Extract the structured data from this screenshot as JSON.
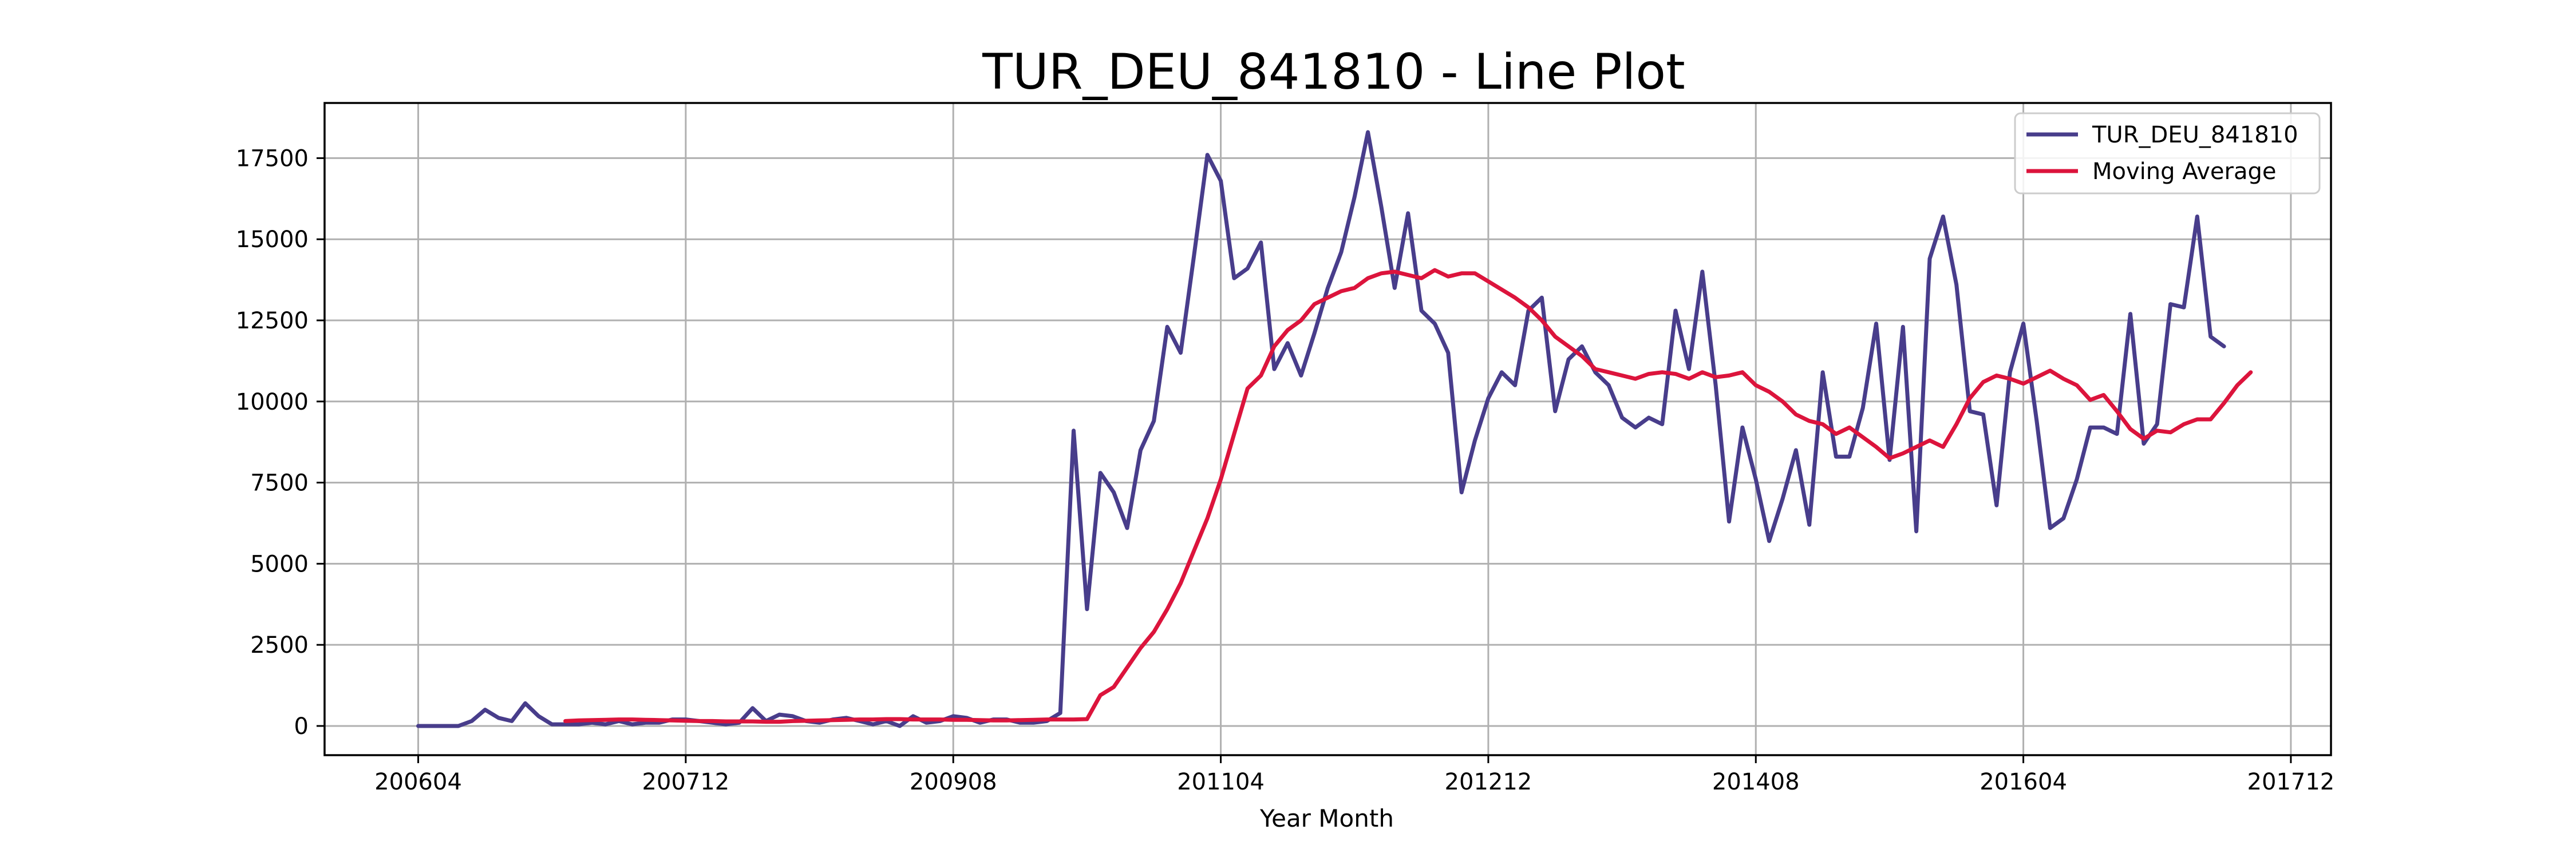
{
  "chart_data": {
    "type": "line",
    "title": "TUR_DEU_841810 - Line Plot",
    "xlabel": "Year Month",
    "ylabel": "",
    "x_tick_labels": [
      "200604",
      "200712",
      "200908",
      "201104",
      "201212",
      "201408",
      "201604",
      "201712"
    ],
    "x_tick_positions": [
      0,
      20,
      40,
      60,
      80,
      100,
      120,
      140
    ],
    "xlim": [
      -7,
      143
    ],
    "y_ticks": [
      0,
      2500,
      5000,
      7500,
      10000,
      12500,
      15000,
      17500
    ],
    "y_tick_labels": [
      "0",
      "2500",
      "5000",
      "7500",
      "10000",
      "12500",
      "15000",
      "17500"
    ],
    "ylim": [
      -900,
      19200
    ],
    "grid": true,
    "legend_position": "top-right",
    "series": [
      {
        "name": "TUR_DEU_841810",
        "color": "#483D8B",
        "values": [
          0,
          0,
          0,
          0,
          150,
          500,
          250,
          150,
          700,
          300,
          50,
          50,
          50,
          100,
          50,
          150,
          50,
          100,
          100,
          200,
          200,
          150,
          100,
          50,
          100,
          550,
          150,
          350,
          300,
          150,
          100,
          200,
          250,
          150,
          50,
          150,
          0,
          300,
          100,
          150,
          300,
          250,
          100,
          200,
          200,
          100,
          100,
          150,
          400,
          9100,
          3600,
          7800,
          7200,
          6100,
          8500,
          9400,
          12300,
          11500,
          14500,
          17600,
          16800,
          13800,
          14100,
          14900,
          11000,
          11800,
          10800,
          12100,
          13500,
          14600,
          16300,
          18300,
          16000,
          13500,
          15800,
          12800,
          12400,
          11500,
          7200,
          8800,
          10100,
          10900,
          10500,
          12800,
          13200,
          9700,
          11300,
          11700,
          10900,
          10500,
          9500,
          9200,
          9500,
          9300,
          12800,
          11000,
          14000,
          10500,
          6300,
          9200,
          7600,
          5700,
          7000,
          8500,
          6200,
          10900,
          8300,
          8300,
          9800,
          12400,
          8200,
          12300,
          6000,
          14400,
          15700,
          13600,
          9700,
          9600,
          6800,
          10900,
          12400,
          9400,
          6100,
          6400,
          7600,
          9200,
          9200,
          9000,
          12700,
          8700,
          9300,
          13000,
          12900,
          15700,
          12000,
          11700
        ]
      },
      {
        "name": "Moving Average",
        "color": "#DC143C",
        "start_index": 11,
        "values": [
          150,
          170,
          180,
          190,
          200,
          200,
          190,
          180,
          170,
          160,
          150,
          150,
          140,
          140,
          140,
          130,
          130,
          150,
          160,
          170,
          180,
          190,
          200,
          200,
          210,
          210,
          200,
          200,
          200,
          190,
          190,
          180,
          170,
          170,
          180,
          190,
          200,
          200,
          200,
          210,
          950,
          1200,
          1800,
          2400,
          2900,
          3600,
          4400,
          5400,
          6400,
          7600,
          9000,
          10400,
          10800,
          11700,
          12200,
          12500,
          13000,
          13200,
          13400,
          13500,
          13800,
          13950,
          14000,
          13900,
          13800,
          14050,
          13850,
          13950,
          13950,
          13700,
          13450,
          13200,
          12900,
          12500,
          12000,
          11700,
          11400,
          11000,
          10900,
          10800,
          10700,
          10850,
          10900,
          10850,
          10700,
          10900,
          10750,
          10800,
          10900,
          10500,
          10300,
          10000,
          9600,
          9400,
          9300,
          9000,
          9200,
          8900,
          8600,
          8250,
          8400,
          8600,
          8800,
          8600,
          9300,
          10100,
          10600,
          10800,
          10700,
          10550,
          10750,
          10950,
          10700,
          10500,
          10050,
          10200,
          9700,
          9150,
          8850,
          9100,
          9050,
          9300,
          9450,
          9450,
          9950,
          10500,
          10900
        ]
      }
    ]
  }
}
